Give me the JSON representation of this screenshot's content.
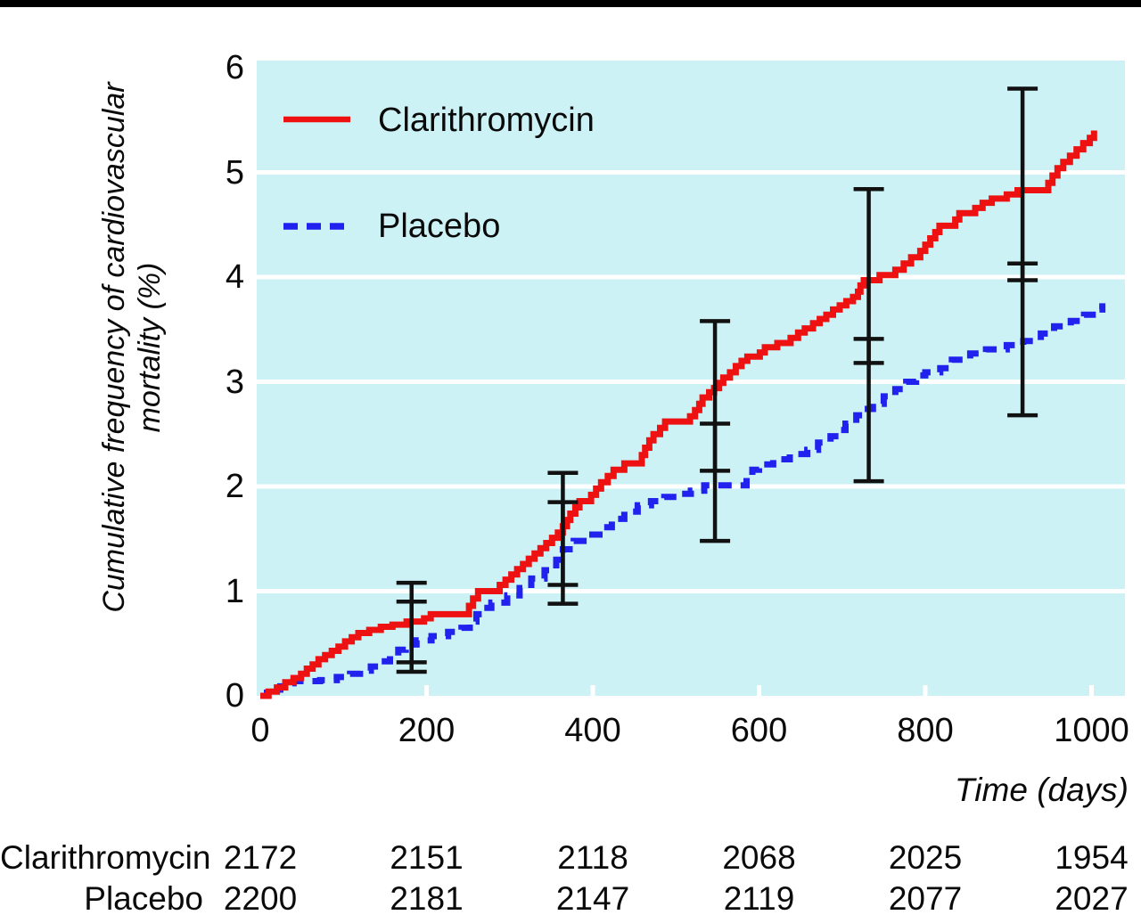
{
  "page": {
    "top_bar_color": "#000000",
    "background": "#ffffff"
  },
  "chart_data": {
    "type": "line",
    "variant": "step-cumulative-incidence",
    "title": "",
    "xlabel": "Time (days)",
    "ylabel": "Cumulative frequency of cardiovascular mortality (%)",
    "ylabel_lines": [
      "Cumulative frequency of cardiovascular",
      "mortality (%)"
    ],
    "xlim": [
      0,
      1040
    ],
    "ylim": [
      0,
      6.07
    ],
    "x_ticks": [
      0,
      200,
      400,
      600,
      800,
      1000
    ],
    "y_ticks": [
      0,
      1,
      2,
      3,
      4,
      5,
      6
    ],
    "grid": "horizontal",
    "plot_bg": "#cdf2f5",
    "grid_color": "#ffffff",
    "legend_position": "top-left-inside",
    "legend": [
      {
        "name": "Clarithromycin",
        "color": "#ee1111",
        "style": "solid"
      },
      {
        "name": "Placebo",
        "color": "#2222ee",
        "style": "dashed"
      }
    ],
    "series": [
      {
        "name": "Clarithromycin",
        "color": "#ee1111",
        "style": "solid",
        "points": [
          [
            0,
            0
          ],
          [
            10,
            0.04
          ],
          [
            20,
            0.08
          ],
          [
            30,
            0.13
          ],
          [
            40,
            0.17
          ],
          [
            49,
            0.21
          ],
          [
            56,
            0.26
          ],
          [
            63,
            0.3
          ],
          [
            70,
            0.35
          ],
          [
            78,
            0.39
          ],
          [
            86,
            0.43
          ],
          [
            94,
            0.47
          ],
          [
            102,
            0.52
          ],
          [
            110,
            0.56
          ],
          [
            118,
            0.6
          ],
          [
            131,
            0.63
          ],
          [
            145,
            0.66
          ],
          [
            159,
            0.68
          ],
          [
            176,
            0.71
          ],
          [
            197,
            0.74
          ],
          [
            205,
            0.78
          ],
          [
            251,
            0.86
          ],
          [
            256,
            0.93
          ],
          [
            262,
            1.0
          ],
          [
            288,
            1.06
          ],
          [
            295,
            1.11
          ],
          [
            302,
            1.16
          ],
          [
            309,
            1.21
          ],
          [
            316,
            1.26
          ],
          [
            323,
            1.31
          ],
          [
            330,
            1.36
          ],
          [
            337,
            1.41
          ],
          [
            344,
            1.46
          ],
          [
            351,
            1.51
          ],
          [
            358,
            1.56
          ],
          [
            364,
            1.62
          ],
          [
            369,
            1.68
          ],
          [
            373,
            1.74
          ],
          [
            379,
            1.8
          ],
          [
            384,
            1.86
          ],
          [
            398,
            1.92
          ],
          [
            404,
            1.98
          ],
          [
            410,
            2.04
          ],
          [
            418,
            2.1
          ],
          [
            425,
            2.16
          ],
          [
            438,
            2.22
          ],
          [
            459,
            2.3
          ],
          [
            463,
            2.37
          ],
          [
            468,
            2.44
          ],
          [
            473,
            2.5
          ],
          [
            481,
            2.56
          ],
          [
            487,
            2.62
          ],
          [
            517,
            2.67
          ],
          [
            523,
            2.73
          ],
          [
            528,
            2.79
          ],
          [
            532,
            2.85
          ],
          [
            540,
            2.9
          ],
          [
            546,
            2.94
          ],
          [
            552,
            2.99
          ],
          [
            557,
            3.04
          ],
          [
            565,
            3.09
          ],
          [
            572,
            3.15
          ],
          [
            579,
            3.2
          ],
          [
            586,
            3.24
          ],
          [
            601,
            3.28
          ],
          [
            607,
            3.33
          ],
          [
            622,
            3.37
          ],
          [
            638,
            3.42
          ],
          [
            647,
            3.47
          ],
          [
            655,
            3.51
          ],
          [
            665,
            3.56
          ],
          [
            673,
            3.6
          ],
          [
            681,
            3.64
          ],
          [
            689,
            3.69
          ],
          [
            697,
            3.73
          ],
          [
            705,
            3.77
          ],
          [
            713,
            3.81
          ],
          [
            719,
            3.86
          ],
          [
            722,
            3.92
          ],
          [
            726,
            3.97
          ],
          [
            745,
            4.02
          ],
          [
            764,
            4.07
          ],
          [
            774,
            4.13
          ],
          [
            783,
            4.19
          ],
          [
            794,
            4.25
          ],
          [
            800,
            4.31
          ],
          [
            806,
            4.37
          ],
          [
            812,
            4.43
          ],
          [
            817,
            4.49
          ],
          [
            836,
            4.55
          ],
          [
            841,
            4.61
          ],
          [
            860,
            4.66
          ],
          [
            869,
            4.71
          ],
          [
            880,
            4.75
          ],
          [
            898,
            4.79
          ],
          [
            911,
            4.83
          ],
          [
            948,
            4.9
          ],
          [
            953,
            4.97
          ],
          [
            959,
            5.04
          ],
          [
            966,
            5.1
          ],
          [
            974,
            5.16
          ],
          [
            982,
            5.22
          ],
          [
            990,
            5.28
          ],
          [
            998,
            5.33
          ],
          [
            1003,
            5.4
          ]
        ]
      },
      {
        "name": "Placebo",
        "color": "#2222ee",
        "style": "dashed",
        "points": [
          [
            0,
            0
          ],
          [
            8,
            0.03
          ],
          [
            16,
            0.06
          ],
          [
            24,
            0.09
          ],
          [
            32,
            0.12
          ],
          [
            40,
            0.14
          ],
          [
            72,
            0.15
          ],
          [
            92,
            0.18
          ],
          [
            108,
            0.21
          ],
          [
            120,
            0.24
          ],
          [
            133,
            0.28
          ],
          [
            146,
            0.33
          ],
          [
            156,
            0.38
          ],
          [
            166,
            0.44
          ],
          [
            175,
            0.49
          ],
          [
            188,
            0.53
          ],
          [
            206,
            0.57
          ],
          [
            226,
            0.61
          ],
          [
            242,
            0.65
          ],
          [
            252,
            0.71
          ],
          [
            260,
            0.78
          ],
          [
            268,
            0.84
          ],
          [
            278,
            0.89
          ],
          [
            297,
            0.96
          ],
          [
            312,
            1.03
          ],
          [
            326,
            1.12
          ],
          [
            342,
            1.2
          ],
          [
            356,
            1.3
          ],
          [
            364,
            1.4
          ],
          [
            377,
            1.48
          ],
          [
            393,
            1.54
          ],
          [
            408,
            1.61
          ],
          [
            423,
            1.69
          ],
          [
            438,
            1.76
          ],
          [
            454,
            1.82
          ],
          [
            470,
            1.86
          ],
          [
            486,
            1.9
          ],
          [
            502,
            1.93
          ],
          [
            518,
            1.96
          ],
          [
            534,
            2.01
          ],
          [
            585,
            2.09
          ],
          [
            592,
            2.16
          ],
          [
            600,
            2.21
          ],
          [
            617,
            2.26
          ],
          [
            637,
            2.31
          ],
          [
            658,
            2.35
          ],
          [
            671,
            2.42
          ],
          [
            686,
            2.48
          ],
          [
            696,
            2.54
          ],
          [
            704,
            2.6
          ],
          [
            717,
            2.68
          ],
          [
            725,
            2.74
          ],
          [
            737,
            2.79
          ],
          [
            750,
            2.86
          ],
          [
            764,
            2.93
          ],
          [
            777,
            3.0
          ],
          [
            789,
            3.06
          ],
          [
            800,
            3.09
          ],
          [
            818,
            3.13
          ],
          [
            832,
            3.21
          ],
          [
            854,
            3.27
          ],
          [
            873,
            3.31
          ],
          [
            898,
            3.35
          ],
          [
            918,
            3.39
          ],
          [
            939,
            3.46
          ],
          [
            955,
            3.53
          ],
          [
            975,
            3.58
          ],
          [
            991,
            3.64
          ],
          [
            1008,
            3.69
          ],
          [
            1013,
            3.75
          ]
        ]
      }
    ],
    "error_bars": [
      {
        "series": "Clarithromycin",
        "color": "#111111",
        "points": [
          {
            "x": 182,
            "lo": 0.32,
            "hi": 1.08
          },
          {
            "x": 364,
            "lo": 1.06,
            "hi": 2.13
          },
          {
            "x": 547,
            "lo": 2.15,
            "hi": 3.58
          },
          {
            "x": 732,
            "lo": 3.18,
            "hi": 4.84
          },
          {
            "x": 917,
            "lo": 3.97,
            "hi": 5.8
          }
        ]
      },
      {
        "series": "Placebo",
        "color": "#111111",
        "points": [
          {
            "x": 182,
            "lo": 0.23,
            "hi": 0.9
          },
          {
            "x": 364,
            "lo": 0.88,
            "hi": 1.85
          },
          {
            "x": 547,
            "lo": 1.48,
            "hi": 2.6
          },
          {
            "x": 732,
            "lo": 2.05,
            "hi": 3.41
          },
          {
            "x": 917,
            "lo": 2.68,
            "hi": 4.13
          }
        ]
      }
    ],
    "risk_table": {
      "columns": [
        0,
        200,
        400,
        600,
        800,
        1000
      ],
      "rows": [
        {
          "label": "Clarithromycin",
          "values": [
            "2172",
            "2151",
            "2118",
            "2068",
            "2025",
            "1954"
          ]
        },
        {
          "label": "Placebo",
          "values": [
            "2200",
            "2181",
            "2147",
            "2119",
            "2077",
            "2027"
          ]
        }
      ]
    }
  }
}
